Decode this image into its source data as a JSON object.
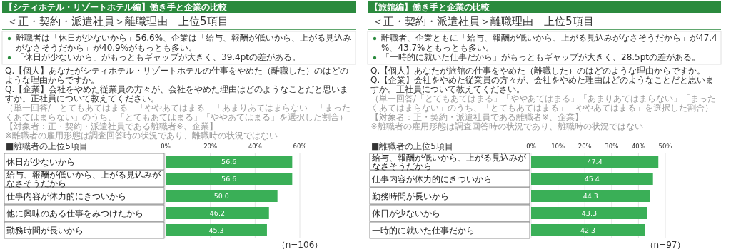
{
  "chart_data": [
    {
      "type": "bar",
      "orientation": "horizontal",
      "title": "【シティホテル・リゾートホテル編】働き手と企業の比較",
      "subtitle": "＜正・契約・派遣社員＞離職理由　上位5項目",
      "annotations": [
        "離職者は「休日が少ないから」56.6%、企業は「給与、報酬が低いから、上がる見込みがなさそうだから」が40.9%がもっとも多い。",
        "「休日が少ないから」がもっともギャップが大きく、39.4ptの差がある。",
        "Q.【個人】あなたがシティホテル・リゾートホテルの仕事をやめた（離職した）のはどのような理由からですか。",
        "Q.【企業】会社をやめた従業員の方々が、会社をやめた理由はどのようなことだと思いますか。正社員について教えてください。",
        "（単一回答/「とてもあてはまる」「ややあてはまる」「あまりあてはまらない」「まったくあてはまらない」のうち、「とてもあてはまる」「ややあてはまる」を選択した割合）【対象者：正・契約・派遣社員である離職者※、企業】",
        "※離職者の雇用形態は調査回答時の状況であり、離職時の状況ではない",
        "■離職者の上位5項目",
        "（n=106）"
      ],
      "categories": [
        "休日が少ないから",
        "給与、報酬が低いから、上がる見込みがなさそうだから",
        "仕事内容が体力的にきついから",
        "他に興味のある仕事をみつけたから",
        "勤務時間が長いから"
      ],
      "values": [
        56.6,
        56.6,
        50.0,
        46.2,
        45.3
      ],
      "value_labels": [
        "56.6",
        "56.6",
        "50.0",
        "46.2",
        "45.3"
      ],
      "color": "#3aaf57",
      "grid": "x",
      "xlim": [
        0,
        60
      ],
      "xticks": [
        {
          "value": 0,
          "label": "0%"
        },
        {
          "value": 20,
          "label": "20%"
        },
        {
          "value": 40,
          "label": "40%"
        },
        {
          "value": 60,
          "label": "60%"
        }
      ]
    },
    {
      "type": "bar",
      "orientation": "horizontal",
      "title": "【旅館編】働き手と企業の比較",
      "subtitle": "＜正・契約・派遣社員＞離職理由　上位5項目",
      "annotations": [
        "離職者、企業ともに「給与、報酬が低いから、上がる見込みがなさそうだから」が47.4%、43.7%ともっとも多い。",
        "「一時的に就いた仕事だから」がもっともギャップが大きく、28.5ptの差がある。",
        "Q.【個人】あなたが旅館の仕事をやめた（離職した）のはどのような理由からですか。",
        "Q.【企業】会社をやめた従業員の方々が、会社をやめた理由はどのようなことだと思いますか。正社員について教えてください。",
        "（単一回答/「とてもあてはまる」「ややあてはまる」「あまりあてはまらない」「まったくあてはまらない」のうち、「とてもあてはまる」「ややあてはまる」を選択した割合）【対象者：正・契約・派遣社員である離職者※、企業】",
        "※離職者の雇用形態は調査回答時の状況であり、離職時の状況ではない",
        "■離職者の上位5項目",
        "（n=97）"
      ],
      "categories": [
        "給与、報酬が低いから、上がる見込みがなさそうだから",
        "仕事内容が体力的にきついから",
        "勤務時間が長いから",
        "休日が少ないから",
        "一時的に就いた仕事だから"
      ],
      "values": [
        47.4,
        45.4,
        44.3,
        43.3,
        42.3
      ],
      "value_labels": [
        "47.4",
        "45.4",
        "44.3",
        "43.3",
        "42.3"
      ],
      "color": "#3aaf57",
      "grid": "x",
      "xlim": [
        0,
        50
      ],
      "xticks": [
        {
          "value": 0,
          "label": "0%"
        },
        {
          "value": 10,
          "label": "10%"
        },
        {
          "value": 20,
          "label": "20%"
        },
        {
          "value": 30,
          "label": "30%"
        },
        {
          "value": 40,
          "label": "40%"
        },
        {
          "value": 50,
          "label": "50%"
        }
      ]
    }
  ]
}
